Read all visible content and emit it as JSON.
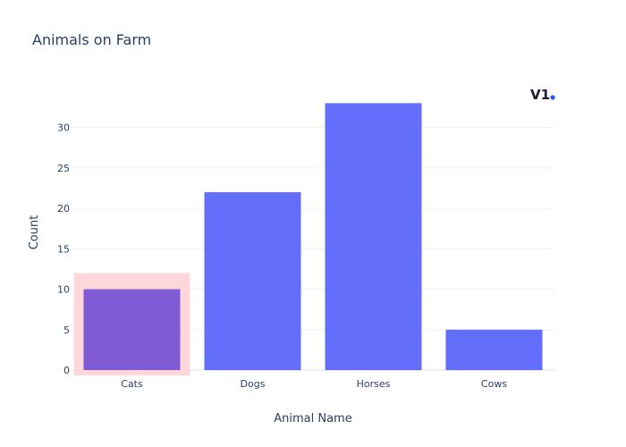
{
  "chart_data": {
    "type": "bar",
    "title": "Animals on Farm",
    "xlabel": "Animal Name",
    "ylabel": "Count",
    "categories": [
      "Cats",
      "Dogs",
      "Horses",
      "Cows"
    ],
    "values": [
      10,
      22,
      33,
      5
    ],
    "ylim": [
      0,
      34.7
    ],
    "yticks": [
      0,
      5,
      10,
      15,
      20,
      25,
      30
    ],
    "highlighted_category": "Cats",
    "bar_color": "#636efa",
    "highlight_color": "#ffd6d9",
    "grid": true
  },
  "watermark": {
    "text": "V1",
    "dot_color": "#1f5bff"
  }
}
